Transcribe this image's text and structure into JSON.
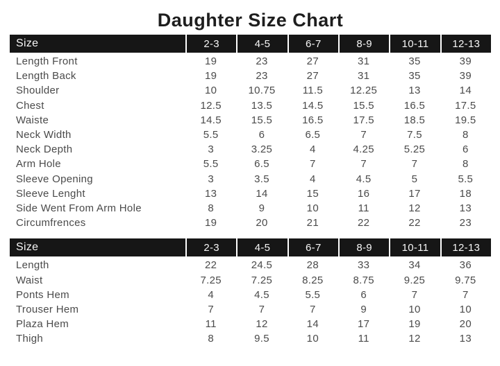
{
  "title": "Daughter Size Chart",
  "colors": {
    "header_bg": "#161616",
    "header_text": "#f7f7f7",
    "body_text": "#4a4a4a",
    "title_text": "#1e1e1e"
  },
  "tables": [
    {
      "header": {
        "size_label": "Size",
        "columns": [
          "2-3",
          "4-5",
          "6-7",
          "8-9",
          "10-11",
          "12-13"
        ]
      },
      "rows": [
        {
          "label": "Length Front",
          "values": [
            "19",
            "23",
            "27",
            "31",
            "35",
            "39"
          ]
        },
        {
          "label": "Length Back",
          "values": [
            "19",
            "23",
            "27",
            "31",
            "35",
            "39"
          ]
        },
        {
          "label": "Shoulder",
          "values": [
            "10",
            "10.75",
            "11.5",
            "12.25",
            "13",
            "14"
          ]
        },
        {
          "label": "Chest",
          "values": [
            "12.5",
            "13.5",
            "14.5",
            "15.5",
            "16.5",
            "17.5"
          ]
        },
        {
          "label": "Waiste",
          "values": [
            "14.5",
            "15.5",
            "16.5",
            "17.5",
            "18.5",
            "19.5"
          ]
        },
        {
          "label": "Neck Width",
          "values": [
            "5.5",
            "6",
            "6.5",
            "7",
            "7.5",
            "8"
          ]
        },
        {
          "label": "Neck Depth",
          "values": [
            "3",
            "3.25",
            "4",
            "4.25",
            "5.25",
            "6"
          ]
        },
        {
          "label": "Arm Hole",
          "values": [
            "5.5",
            "6.5",
            "7",
            "7",
            "7",
            "8"
          ]
        },
        {
          "label": "Sleeve Opening",
          "values": [
            "3",
            "3.5",
            "4",
            "4.5",
            "5",
            "5.5"
          ]
        },
        {
          "label": "Sleeve Lenght",
          "values": [
            "13",
            "14",
            "15",
            "16",
            "17",
            "18"
          ]
        },
        {
          "label": "Side Went From Arm Hole",
          "values": [
            "8",
            "9",
            "10",
            "11",
            "12",
            "13"
          ]
        },
        {
          "label": "Circumfrences",
          "values": [
            "19",
            "20",
            "21",
            "22",
            "22",
            "23"
          ]
        }
      ]
    },
    {
      "header": {
        "size_label": "Size",
        "columns": [
          "2-3",
          "4-5",
          "6-7",
          "8-9",
          "10-11",
          "12-13"
        ]
      },
      "rows": [
        {
          "label": "Length",
          "values": [
            "22",
            "24.5",
            "28",
            "33",
            "34",
            "36"
          ]
        },
        {
          "label": "Waist",
          "values": [
            "7.25",
            "7.25",
            "8.25",
            "8.75",
            "9.25",
            "9.75"
          ]
        },
        {
          "label": "Ponts Hem",
          "values": [
            "4",
            "4.5",
            "5.5",
            "6",
            "7",
            "7"
          ]
        },
        {
          "label": "Trouser Hem",
          "values": [
            "7",
            "7",
            "7",
            "9",
            "10",
            "10"
          ]
        },
        {
          "label": "Plaza Hem",
          "values": [
            "11",
            "12",
            "14",
            "17",
            "19",
            "20"
          ]
        },
        {
          "label": "Thigh",
          "values": [
            "8",
            "9.5",
            "10",
            "11",
            "12",
            "13"
          ]
        }
      ]
    }
  ]
}
